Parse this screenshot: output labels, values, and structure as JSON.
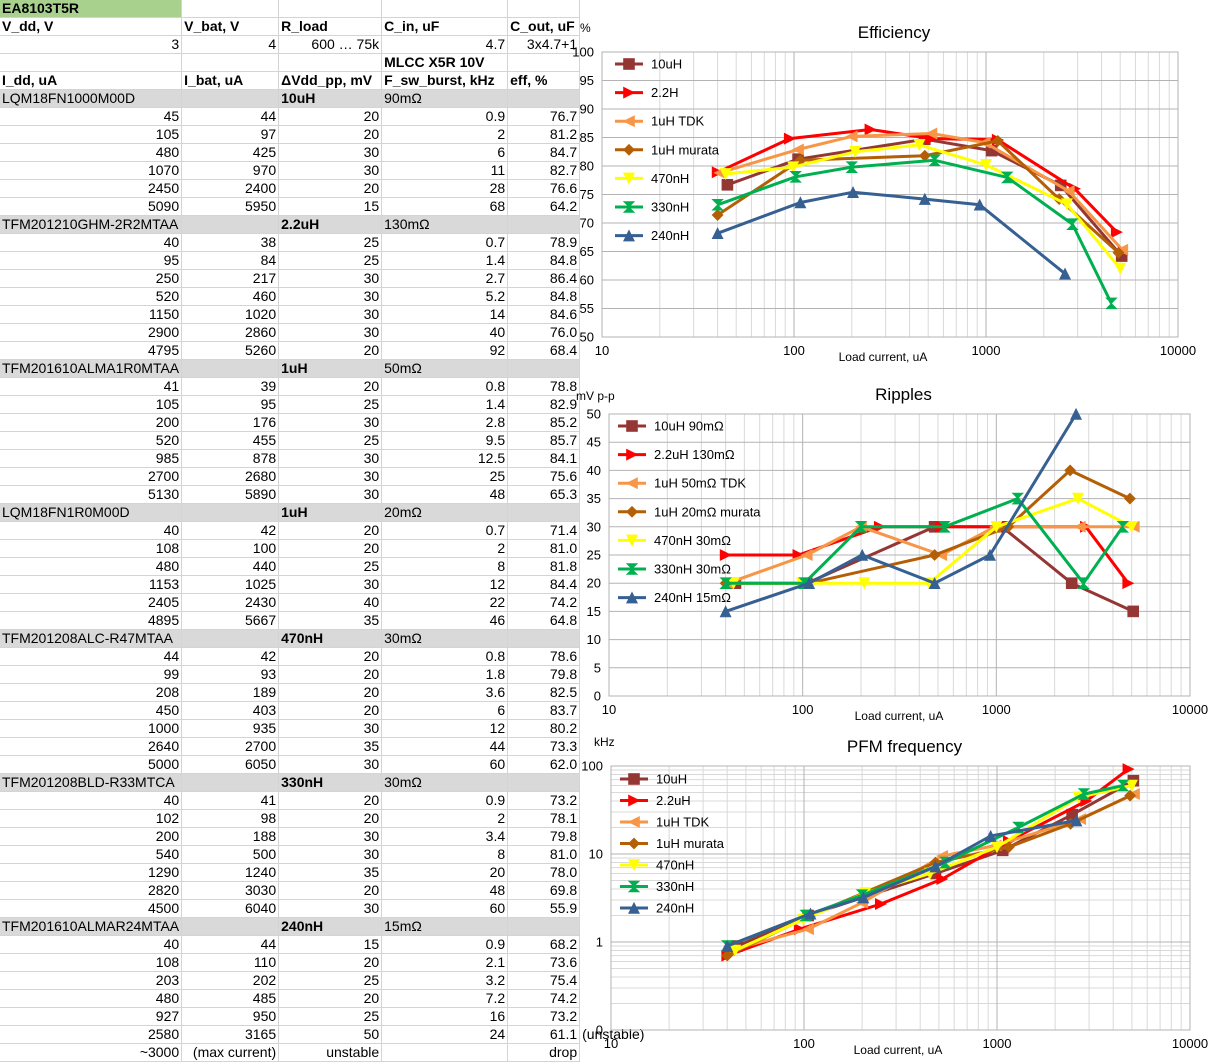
{
  "sheet": {
    "title": "EA8103T5R",
    "header1": [
      "V_dd, V",
      "V_bat, V",
      "R_load",
      "C_in, uF",
      "C_out, uF"
    ],
    "params": [
      "3",
      "4",
      "600 … 75k",
      "4.7",
      "3x4.7+1"
    ],
    "header2_extra": "MLCC X5R 10V",
    "header3": [
      "I_dd, uA",
      "I_bat, uA",
      "ΔVdd_pp, mV",
      "F_sw_burst, kHz",
      "eff, %"
    ],
    "groups": [
      {
        "part": "LQM18FN1000M00D",
        "ind": "10uH",
        "dcr": "90mΩ",
        "rows": [
          [
            "45",
            "44",
            "20",
            "0.9",
            "76.7"
          ],
          [
            "105",
            "97",
            "20",
            "2",
            "81.2"
          ],
          [
            "480",
            "425",
            "30",
            "6",
            "84.7"
          ],
          [
            "1070",
            "970",
            "30",
            "11",
            "82.7"
          ],
          [
            "2450",
            "2400",
            "20",
            "28",
            "76.6"
          ],
          [
            "5090",
            "5950",
            "15",
            "68",
            "64.2"
          ]
        ]
      },
      {
        "part": "TFM201210GHM-2R2MTAA",
        "ind": "2.2uH",
        "dcr": "130mΩ",
        "rows": [
          [
            "40",
            "38",
            "25",
            "0.7",
            "78.9"
          ],
          [
            "95",
            "84",
            "25",
            "1.4",
            "84.8"
          ],
          [
            "250",
            "217",
            "30",
            "2.7",
            "86.4"
          ],
          [
            "520",
            "460",
            "30",
            "5.2",
            "84.8"
          ],
          [
            "1150",
            "1020",
            "30",
            "14",
            "84.6"
          ],
          [
            "2900",
            "2860",
            "30",
            "40",
            "76.0"
          ],
          [
            "4795",
            "5260",
            "20",
            "92",
            "68.4"
          ]
        ]
      },
      {
        "part": "TFM201610ALMA1R0MTAA",
        "ind": "1uH",
        "dcr": "50mΩ",
        "rows": [
          [
            "41",
            "39",
            "20",
            "0.8",
            "78.8"
          ],
          [
            "105",
            "95",
            "25",
            "1.4",
            "82.9"
          ],
          [
            "200",
            "176",
            "30",
            "2.8",
            "85.2"
          ],
          [
            "520",
            "455",
            "25",
            "9.5",
            "85.7"
          ],
          [
            "985",
            "878",
            "30",
            "12.5",
            "84.1"
          ],
          [
            "2700",
            "2680",
            "30",
            "25",
            "75.6"
          ],
          [
            "5130",
            "5890",
            "30",
            "48",
            "65.3"
          ]
        ]
      },
      {
        "part": "LQM18FN1R0M00D",
        "ind": "1uH",
        "dcr": "20mΩ",
        "rows": [
          [
            "40",
            "42",
            "20",
            "0.7",
            "71.4"
          ],
          [
            "108",
            "100",
            "20",
            "2",
            "81.0"
          ],
          [
            "480",
            "440",
            "25",
            "8",
            "81.8"
          ],
          [
            "1153",
            "1025",
            "30",
            "12",
            "84.4"
          ],
          [
            "2405",
            "2430",
            "40",
            "22",
            "74.2"
          ],
          [
            "4895",
            "5667",
            "35",
            "46",
            "64.8"
          ]
        ]
      },
      {
        "part": "TFM201208ALC-R47MTAA",
        "ind": "470nH",
        "dcr": "30mΩ",
        "rows": [
          [
            "44",
            "42",
            "20",
            "0.8",
            "78.6"
          ],
          [
            "99",
            "93",
            "20",
            "1.8",
            "79.8"
          ],
          [
            "208",
            "189",
            "20",
            "3.6",
            "82.5"
          ],
          [
            "450",
            "403",
            "20",
            "6",
            "83.7"
          ],
          [
            "1000",
            "935",
            "30",
            "12",
            "80.2"
          ],
          [
            "2640",
            "2700",
            "35",
            "44",
            "73.3"
          ],
          [
            "5000",
            "6050",
            "30",
            "60",
            "62.0"
          ]
        ]
      },
      {
        "part": "TFM201208BLD-R33MTCA",
        "ind": "330nH",
        "dcr": "30mΩ",
        "rows": [
          [
            "40",
            "41",
            "20",
            "0.9",
            "73.2"
          ],
          [
            "102",
            "98",
            "20",
            "2",
            "78.1"
          ],
          [
            "200",
            "188",
            "30",
            "3.4",
            "79.8"
          ],
          [
            "540",
            "500",
            "30",
            "8",
            "81.0"
          ],
          [
            "1290",
            "1240",
            "35",
            "20",
            "78.0"
          ],
          [
            "2820",
            "3030",
            "20",
            "48",
            "69.8"
          ],
          [
            "4500",
            "6040",
            "30",
            "60",
            "55.9"
          ]
        ]
      },
      {
        "part": "TFM201610ALMAR24MTAA",
        "ind": "240nH",
        "dcr": "15mΩ",
        "rows": [
          [
            "40",
            "44",
            "15",
            "0.9",
            "68.2"
          ],
          [
            "108",
            "110",
            "20",
            "2.1",
            "73.6"
          ],
          [
            "203",
            "202",
            "25",
            "3.2",
            "75.4"
          ],
          [
            "480",
            "485",
            "20",
            "7.2",
            "74.2"
          ],
          [
            "927",
            "950",
            "25",
            "16",
            "73.2"
          ],
          [
            "2580",
            "3165",
            "50",
            "24",
            "61.1"
          ]
        ]
      }
    ],
    "unstable_note": "(unstable)",
    "footer": [
      "~3000",
      "(max current)",
      "unstable",
      "",
      "drop"
    ]
  },
  "colors": {
    "10uH": "#943634",
    "2.2uH": "#ff0000",
    "1uH TDK": "#f79646",
    "1uH murata": "#b45f06",
    "470nH": "#ffff00",
    "330nH": "#00b050",
    "240nH": "#376092"
  },
  "chart_data": [
    {
      "type": "line",
      "title": "Efficiency",
      "ylabel": "%",
      "xlabel": "Load current, uA",
      "xscale": "log",
      "xlim": [
        10,
        10000
      ],
      "ylim": [
        50,
        100
      ],
      "yticks": [
        50,
        55,
        60,
        65,
        70,
        75,
        80,
        85,
        90,
        95,
        100
      ],
      "xticks": [
        10,
        100,
        1000,
        10000
      ],
      "legend": "top-left",
      "series": [
        {
          "name": "10uH",
          "color": "#943634",
          "marker": "square",
          "x": [
            45,
            105,
            480,
            1070,
            2450,
            5090
          ],
          "y": [
            76.7,
            81.2,
            84.7,
            82.7,
            76.6,
            64.2
          ]
        },
        {
          "name": "2.2H",
          "color": "#ff0000",
          "marker": "tri-right",
          "x": [
            40,
            95,
            250,
            520,
            1150,
            2900,
            4795
          ],
          "y": [
            78.9,
            84.8,
            86.4,
            84.8,
            84.6,
            76.0,
            68.4
          ]
        },
        {
          "name": "1uH TDK",
          "color": "#f79646",
          "marker": "tri-left",
          "x": [
            41,
            105,
            200,
            520,
            985,
            2700,
            5130
          ],
          "y": [
            78.8,
            82.9,
            85.2,
            85.7,
            84.1,
            75.6,
            65.3
          ]
        },
        {
          "name": "1uH murata",
          "color": "#b45f06",
          "marker": "diamond",
          "x": [
            40,
            108,
            480,
            1153,
            2405,
            4895
          ],
          "y": [
            71.4,
            81.0,
            81.8,
            84.4,
            74.2,
            64.8
          ]
        },
        {
          "name": "470nH",
          "color": "#ffff00",
          "marker": "tri-down",
          "x": [
            44,
            99,
            208,
            450,
            1000,
            2640,
            5000
          ],
          "y": [
            78.6,
            79.8,
            82.5,
            83.7,
            80.2,
            73.3,
            62.0
          ]
        },
        {
          "name": "330nH",
          "color": "#00b050",
          "marker": "bowtie",
          "x": [
            40,
            102,
            200,
            540,
            1290,
            2820,
            4500
          ],
          "y": [
            73.2,
            78.1,
            79.8,
            81.0,
            78.0,
            69.8,
            55.9
          ]
        },
        {
          "name": "240nH",
          "color": "#376092",
          "marker": "tri-up",
          "x": [
            40,
            108,
            203,
            480,
            927,
            2580
          ],
          "y": [
            68.2,
            73.6,
            75.4,
            74.2,
            73.2,
            61.1
          ]
        }
      ]
    },
    {
      "type": "line",
      "title": "Ripples",
      "ylabel": "mV p-p",
      "xlabel": "Load current, uA",
      "xscale": "log",
      "xlim": [
        10,
        10000
      ],
      "ylim": [
        0,
        50
      ],
      "yticks": [
        0,
        5,
        10,
        15,
        20,
        25,
        30,
        35,
        40,
        45,
        50
      ],
      "xticks": [
        10,
        100,
        1000,
        10000
      ],
      "legend": "top-left",
      "series": [
        {
          "name": "10uH 90mΩ",
          "color": "#943634",
          "marker": "square",
          "x": [
            45,
            105,
            480,
            1070,
            2450,
            5090
          ],
          "y": [
            20,
            20,
            30,
            30,
            20,
            15
          ]
        },
        {
          "name": "2.2uH 130mΩ",
          "color": "#ff0000",
          "marker": "tri-right",
          "x": [
            40,
            95,
            250,
            520,
            1150,
            2900,
            4795
          ],
          "y": [
            25,
            25,
            30,
            30,
            30,
            30,
            20
          ]
        },
        {
          "name": "1uH 50mΩ TDK",
          "color": "#f79646",
          "marker": "tri-left",
          "x": [
            41,
            105,
            200,
            520,
            985,
            2700,
            5130
          ],
          "y": [
            20,
            25,
            30,
            25,
            30,
            30,
            30
          ]
        },
        {
          "name": "1uH 20mΩ murata",
          "color": "#b45f06",
          "marker": "diamond",
          "x": [
            40,
            108,
            480,
            1153,
            2405,
            4895
          ],
          "y": [
            20,
            20,
            25,
            30,
            40,
            35
          ]
        },
        {
          "name": "470nH 30mΩ",
          "color": "#ffff00",
          "marker": "tri-down",
          "x": [
            44,
            99,
            208,
            450,
            1000,
            2640,
            5000
          ],
          "y": [
            20,
            20,
            20,
            20,
            30,
            35,
            30
          ]
        },
        {
          "name": "330nH 30mΩ",
          "color": "#00b050",
          "marker": "bowtie",
          "x": [
            40,
            102,
            200,
            540,
            1290,
            2820,
            4500
          ],
          "y": [
            20,
            20,
            30,
            30,
            35,
            20,
            30
          ]
        },
        {
          "name": "240nH 15mΩ",
          "color": "#376092",
          "marker": "tri-up",
          "x": [
            40,
            108,
            203,
            480,
            927,
            2580
          ],
          "y": [
            15,
            20,
            25,
            20,
            25,
            50
          ]
        }
      ]
    },
    {
      "type": "line",
      "title": "PFM frequency",
      "ylabel": "kHz",
      "xlabel": "Load current, uA",
      "xscale": "log",
      "yscale": "log",
      "xlim": [
        10,
        10000
      ],
      "ylim": [
        0.1,
        100
      ],
      "yticks": [
        0.1,
        1,
        10,
        100
      ],
      "yticklabels": [
        "0",
        "1",
        "10",
        "100"
      ],
      "xticks": [
        10,
        100,
        1000,
        10000
      ],
      "legend": "top-left",
      "series": [
        {
          "name": "10uH",
          "color": "#943634",
          "marker": "square",
          "x": [
            45,
            105,
            480,
            1070,
            2450,
            5090
          ],
          "y": [
            0.9,
            2,
            6,
            11,
            28,
            68
          ]
        },
        {
          "name": "2.2uH",
          "color": "#ff0000",
          "marker": "tri-right",
          "x": [
            40,
            95,
            250,
            520,
            1150,
            2900,
            4795
          ],
          "y": [
            0.7,
            1.4,
            2.7,
            5.2,
            14,
            40,
            92
          ]
        },
        {
          "name": "1uH TDK",
          "color": "#f79646",
          "marker": "tri-left",
          "x": [
            41,
            105,
            200,
            520,
            985,
            2700,
            5130
          ],
          "y": [
            0.8,
            1.4,
            2.8,
            9.5,
            12.5,
            25,
            48
          ]
        },
        {
          "name": "1uH murata",
          "color": "#b45f06",
          "marker": "diamond",
          "x": [
            40,
            108,
            480,
            1153,
            2405,
            4895
          ],
          "y": [
            0.7,
            2,
            8,
            12,
            22,
            46
          ]
        },
        {
          "name": "470nH",
          "color": "#ffff00",
          "marker": "tri-down",
          "x": [
            44,
            99,
            208,
            450,
            1000,
            2640,
            5000
          ],
          "y": [
            0.8,
            1.8,
            3.6,
            6,
            12,
            44,
            60
          ]
        },
        {
          "name": "330nH",
          "color": "#00b050",
          "marker": "bowtie",
          "x": [
            40,
            102,
            200,
            540,
            1290,
            2820,
            4500
          ],
          "y": [
            0.9,
            2,
            3.4,
            8,
            20,
            48,
            60
          ]
        },
        {
          "name": "240nH",
          "color": "#376092",
          "marker": "tri-up",
          "x": [
            40,
            108,
            203,
            480,
            927,
            2580
          ],
          "y": [
            0.9,
            2.1,
            3.2,
            7.2,
            16,
            24
          ]
        }
      ]
    }
  ]
}
